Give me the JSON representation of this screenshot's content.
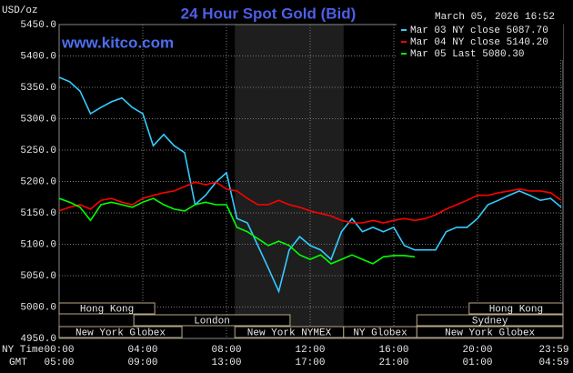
{
  "chart_data": {
    "type": "line",
    "title": "24 Hour Spot Gold (Bid)",
    "timestamp": "March 05, 2026 16:52",
    "watermark": "www.kitco.com",
    "y_label": "USD/oz",
    "x_row_labels": [
      "NY Time",
      "GMT"
    ],
    "x": [
      0,
      0.5,
      1,
      1.5,
      2,
      2.5,
      3,
      3.5,
      4,
      4.5,
      5,
      5.5,
      6,
      6.5,
      7,
      7.5,
      8,
      8.5,
      9,
      9.5,
      10,
      10.5,
      11,
      11.5,
      12,
      12.5,
      13,
      13.5,
      14,
      14.5,
      15,
      15.5,
      16,
      16.5,
      17,
      17.5,
      18,
      18.5,
      19,
      19.5,
      20,
      20.5,
      21,
      21.5,
      22,
      22.5,
      23,
      23.5,
      24
    ],
    "xlim": [
      0,
      24
    ],
    "xticks": [
      {
        "value": 0,
        "label": "00:00"
      },
      {
        "value": 4,
        "label": "04:00"
      },
      {
        "value": 8,
        "label": "08:00"
      },
      {
        "value": 12,
        "label": "12:00"
      },
      {
        "value": 16,
        "label": "16:00"
      },
      {
        "value": 20,
        "label": "20:00"
      },
      {
        "value": 23.983,
        "label": "23:59"
      }
    ],
    "gmt_labels": [
      "05:00",
      "09:00",
      "13:00",
      "17:00",
      "21:00",
      "01:00",
      "04:59"
    ],
    "ylim": [
      4950,
      5450
    ],
    "yticks": [
      {
        "value": 4950,
        "label": "4950.0"
      },
      {
        "value": 5000,
        "label": "5000.0"
      },
      {
        "value": 5050,
        "label": "5050.0"
      },
      {
        "value": 5100,
        "label": "5100.0"
      },
      {
        "value": 5150,
        "label": "5150.0"
      },
      {
        "value": 5200,
        "label": "5200.0"
      },
      {
        "value": 5250,
        "label": "5250.0"
      },
      {
        "value": 5300,
        "label": "5300.0"
      },
      {
        "value": 5350,
        "label": "5350.0"
      },
      {
        "value": 5400,
        "label": "5400.0"
      },
      {
        "value": 5450,
        "label": "5450.0"
      }
    ],
    "grid": true,
    "series": [
      {
        "name": "Mar 03 NY close 5087.70",
        "color": "#33ccff",
        "values": [
          5366,
          5359,
          5344,
          5308,
          5318,
          5327,
          5333,
          5318,
          5308,
          5257,
          5275,
          5257,
          5246,
          5163,
          5178,
          5199,
          5214,
          5141,
          5134,
          5098,
          5062,
          5025,
          5091,
          5112,
          5098,
          5091,
          5076,
          5120,
          5141,
          5120,
          5127,
          5120,
          5127,
          5098,
          5091,
          5091,
          5091,
          5120,
          5127,
          5127,
          5141,
          5163,
          5170,
          5178,
          5185,
          5178,
          5170,
          5173,
          5159
        ]
      },
      {
        "name": "Mar 04 NY close 5140.20",
        "color": "#ff0000",
        "values": [
          5153,
          5159,
          5163,
          5156,
          5170,
          5173,
          5167,
          5163,
          5173,
          5178,
          5182,
          5185,
          5192,
          5199,
          5195,
          5199,
          5188,
          5185,
          5173,
          5163,
          5163,
          5170,
          5163,
          5159,
          5153,
          5149,
          5145,
          5138,
          5134,
          5134,
          5138,
          5134,
          5138,
          5141,
          5138,
          5141,
          5147,
          5156,
          5163,
          5170,
          5178,
          5178,
          5182,
          5185,
          5188,
          5185,
          5185,
          5182,
          5170
        ]
      },
      {
        "name": "Mar 05 Last 5080.30",
        "color": "#00ff00",
        "values": [
          5173,
          5167,
          5159,
          5138,
          5163,
          5167,
          5163,
          5159,
          5167,
          5173,
          5163,
          5156,
          5153,
          5163,
          5167,
          5163,
          5163,
          5127,
          5120,
          5109,
          5098,
          5105,
          5098,
          5083,
          5076,
          5083,
          5069,
          5076,
          5083,
          5076,
          5069,
          5080,
          5082,
          5082,
          5080,
          null,
          null,
          null,
          null,
          null,
          null,
          null,
          null,
          null,
          null,
          null,
          null,
          null,
          null
        ]
      }
    ],
    "sessions": [
      {
        "name": "Hong Kong",
        "row": 0,
        "start": 0,
        "end": 4.57
      },
      {
        "name": "Hong Kong",
        "row": 0,
        "start": 19.6,
        "end": 24.1
      },
      {
        "name": "London",
        "row": 1,
        "start": 3.57,
        "end": 11.04
      },
      {
        "name": "Sydney",
        "row": 1,
        "start": 17.1,
        "end": 24.1
      },
      {
        "name": "New York Globex",
        "row": 2,
        "start": 0,
        "end": 5.87
      },
      {
        "name": "New York NYMEX",
        "row": 2,
        "start": 8.4,
        "end": 13.6
      },
      {
        "name": "NY Globex",
        "row": 2,
        "start": 13.6,
        "end": 17.1
      },
      {
        "name": "New York Globex",
        "row": 2,
        "start": 17.1,
        "end": 24.1
      }
    ]
  }
}
